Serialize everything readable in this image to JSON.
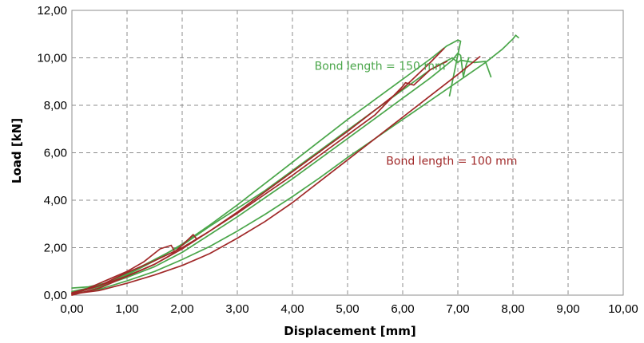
{
  "chart_data": {
    "type": "line",
    "title": "",
    "xlabel": "Displacement [mm]",
    "ylabel": "Load [kN]",
    "xlim": [
      0,
      10
    ],
    "ylim": [
      0,
      12
    ],
    "x_ticks": [
      "0,00",
      "1,00",
      "2,00",
      "3,00",
      "4,00",
      "5,00",
      "6,00",
      "7,00",
      "8,00",
      "9,00",
      "10,00"
    ],
    "y_ticks": [
      "0,00",
      "2,00",
      "4,00",
      "6,00",
      "8,00",
      "10,00",
      "12,00"
    ],
    "grid": true,
    "annotations": [
      {
        "text": "Bond length = 150 mm",
        "x": 4.4,
        "y": 9.5,
        "color": "#4aa64a"
      },
      {
        "text": "Bond length = 100 mm",
        "x": 5.7,
        "y": 5.5,
        "color": "#a02828"
      }
    ],
    "colors": {
      "bond_150": "#4aa64a",
      "bond_100": "#a02828",
      "grid": "#8c8c8c"
    },
    "series": [
      {
        "group": "bond_150",
        "points": [
          [
            0,
            0.3
          ],
          [
            0.3,
            0.35
          ],
          [
            0.6,
            0.5
          ],
          [
            1.0,
            0.9
          ],
          [
            1.5,
            1.5
          ],
          [
            2.0,
            2.1
          ],
          [
            2.5,
            2.9
          ],
          [
            3.0,
            3.65
          ],
          [
            3.5,
            4.4
          ],
          [
            4.0,
            5.25
          ],
          [
            4.5,
            6.1
          ],
          [
            5.0,
            6.95
          ],
          [
            5.5,
            7.8
          ],
          [
            6.0,
            8.65
          ],
          [
            6.5,
            9.5
          ],
          [
            6.9,
            10.0
          ],
          [
            7.0,
            9.8
          ],
          [
            7.05,
            9.9
          ],
          [
            7.3,
            9.8
          ],
          [
            7.5,
            9.85
          ],
          [
            7.6,
            9.2
          ]
        ]
      },
      {
        "group": "bond_150",
        "points": [
          [
            0,
            0.1
          ],
          [
            0.5,
            0.35
          ],
          [
            1.0,
            0.75
          ],
          [
            1.5,
            1.2
          ],
          [
            2.0,
            1.8
          ],
          [
            2.5,
            2.55
          ],
          [
            3.0,
            3.3
          ],
          [
            3.5,
            4.1
          ],
          [
            4.0,
            4.9
          ],
          [
            4.5,
            5.75
          ],
          [
            5.0,
            6.6
          ],
          [
            5.5,
            7.45
          ],
          [
            6.0,
            8.3
          ],
          [
            6.5,
            9.15
          ],
          [
            6.9,
            9.9
          ],
          [
            7.0,
            10.2
          ],
          [
            7.05,
            10.1
          ],
          [
            7.1,
            9.2
          ],
          [
            7.15,
            9.7
          ],
          [
            7.2,
            10.0
          ]
        ]
      },
      {
        "group": "bond_150",
        "points": [
          [
            0,
            0.15
          ],
          [
            0.5,
            0.4
          ],
          [
            1.0,
            0.85
          ],
          [
            1.5,
            1.45
          ],
          [
            2.0,
            2.15
          ],
          [
            2.5,
            2.95
          ],
          [
            3.0,
            3.8
          ],
          [
            3.5,
            4.7
          ],
          [
            4.0,
            5.6
          ],
          [
            4.5,
            6.5
          ],
          [
            5.0,
            7.4
          ],
          [
            5.5,
            8.25
          ],
          [
            6.0,
            9.1
          ],
          [
            6.5,
            9.95
          ],
          [
            6.8,
            10.5
          ],
          [
            7.0,
            10.75
          ],
          [
            7.05,
            10.7
          ],
          [
            6.85,
            8.4
          ]
        ]
      },
      {
        "group": "bond_150",
        "points": [
          [
            0,
            0.05
          ],
          [
            0.5,
            0.25
          ],
          [
            1.0,
            0.6
          ],
          [
            1.5,
            1.0
          ],
          [
            2.0,
            1.5
          ],
          [
            2.5,
            2.05
          ],
          [
            3.0,
            2.7
          ],
          [
            3.5,
            3.4
          ],
          [
            4.0,
            4.15
          ],
          [
            4.5,
            4.95
          ],
          [
            5.0,
            5.8
          ],
          [
            5.5,
            6.6
          ],
          [
            6.0,
            7.4
          ],
          [
            6.5,
            8.2
          ],
          [
            7.0,
            9.0
          ],
          [
            7.5,
            9.8
          ],
          [
            7.8,
            10.35
          ],
          [
            8.0,
            10.8
          ],
          [
            8.05,
            10.95
          ],
          [
            8.1,
            10.85
          ]
        ]
      },
      {
        "group": "bond_100",
        "points": [
          [
            0,
            0.0
          ],
          [
            0.5,
            0.3
          ],
          [
            1.0,
            0.8
          ],
          [
            1.5,
            1.3
          ],
          [
            2.0,
            1.95
          ],
          [
            2.5,
            2.7
          ],
          [
            3.0,
            3.5
          ],
          [
            3.5,
            4.35
          ],
          [
            4.0,
            5.2
          ],
          [
            4.5,
            6.05
          ],
          [
            5.0,
            6.9
          ],
          [
            5.5,
            7.8
          ],
          [
            6.0,
            8.7
          ],
          [
            6.5,
            9.8
          ],
          [
            6.75,
            10.4
          ]
        ]
      },
      {
        "group": "bond_100",
        "points": [
          [
            0,
            0.05
          ],
          [
            0.5,
            0.4
          ],
          [
            1.0,
            0.95
          ],
          [
            1.5,
            1.45
          ],
          [
            2.0,
            2.0
          ],
          [
            2.5,
            2.7
          ],
          [
            3.0,
            3.45
          ],
          [
            3.5,
            4.25
          ],
          [
            4.0,
            5.05
          ],
          [
            4.5,
            5.9
          ],
          [
            5.0,
            6.75
          ],
          [
            5.5,
            7.6
          ],
          [
            6.0,
            8.8
          ],
          [
            6.05,
            8.95
          ],
          [
            6.2,
            8.85
          ],
          [
            6.5,
            9.5
          ],
          [
            6.8,
            9.85
          ]
        ]
      },
      {
        "group": "bond_100",
        "points": [
          [
            0,
            0.05
          ],
          [
            0.5,
            0.2
          ],
          [
            1.0,
            0.5
          ],
          [
            1.5,
            0.85
          ],
          [
            2.0,
            1.25
          ],
          [
            2.5,
            1.75
          ],
          [
            3.0,
            2.4
          ],
          [
            3.5,
            3.1
          ],
          [
            4.0,
            3.9
          ],
          [
            4.5,
            4.8
          ],
          [
            5.0,
            5.7
          ],
          [
            5.5,
            6.6
          ],
          [
            6.0,
            7.5
          ],
          [
            6.5,
            8.4
          ],
          [
            7.0,
            9.3
          ],
          [
            7.4,
            10.05
          ]
        ]
      },
      {
        "group": "bond_100",
        "points": [
          [
            0,
            0.1
          ],
          [
            0.5,
            0.4
          ],
          [
            1.0,
            0.8
          ],
          [
            1.5,
            1.3
          ],
          [
            1.8,
            1.7
          ],
          [
            2.0,
            2.1
          ],
          [
            2.2,
            2.55
          ],
          [
            2.25,
            2.4
          ]
        ]
      },
      {
        "group": "bond_100",
        "points": [
          [
            0.3,
            0.3
          ],
          [
            0.7,
            0.7
          ],
          [
            1.0,
            1.0
          ],
          [
            1.3,
            1.4
          ],
          [
            1.6,
            1.95
          ],
          [
            1.8,
            2.1
          ],
          [
            1.85,
            1.9
          ]
        ]
      }
    ]
  }
}
